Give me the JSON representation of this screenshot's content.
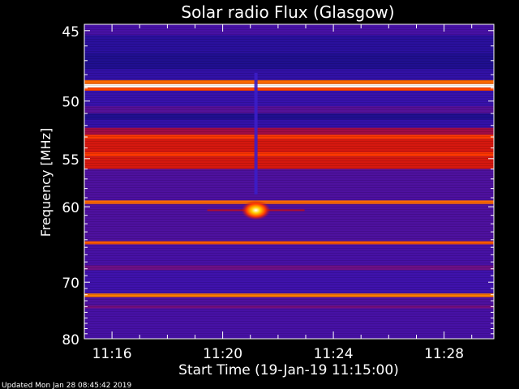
{
  "chart_data": {
    "type": "heatmap",
    "title": "Solar radio Flux (Glasgow)",
    "xlabel": "Start Time (19-Jan-19 11:15:00)",
    "ylabel": "Frequency [MHz]",
    "x_ticks": [
      "11:16",
      "11:20",
      "11:24",
      "11:28"
    ],
    "x_tick_minutes": [
      1,
      5,
      9,
      13
    ],
    "x_range_minutes": [
      0,
      14.8
    ],
    "y_ticks": [
      45,
      50,
      55,
      60,
      70,
      80
    ],
    "y_range": [
      44.6,
      80
    ],
    "y_scale": "reciprocal",
    "colormap": [
      "#1c0f8c",
      "#3a12b0",
      "#7a0f7a",
      "#c40a16",
      "#ff3a00",
      "#ffd000",
      "#ffffff"
    ],
    "background_color": "#2a14a8",
    "bands": [
      {
        "freq_lo": 44.6,
        "freq_hi": 45.3,
        "level": 0.2
      },
      {
        "freq_lo": 45.3,
        "freq_hi": 46.5,
        "level": 0.08
      },
      {
        "freq_lo": 46.5,
        "freq_hi": 47.6,
        "level": 0.02
      },
      {
        "freq_lo": 47.6,
        "freq_hi": 48.4,
        "level": 0.12
      },
      {
        "freq_lo": 48.4,
        "freq_hi": 48.7,
        "level": 0.72
      },
      {
        "freq_lo": 48.7,
        "freq_hi": 48.95,
        "level": 1.0
      },
      {
        "freq_lo": 48.95,
        "freq_hi": 49.2,
        "level": 0.68
      },
      {
        "freq_lo": 49.2,
        "freq_hi": 50.4,
        "level": 0.15
      },
      {
        "freq_lo": 50.4,
        "freq_hi": 51.0,
        "level": 0.24
      },
      {
        "freq_lo": 51.0,
        "freq_hi": 51.5,
        "level": 0.02
      },
      {
        "freq_lo": 51.5,
        "freq_hi": 52.2,
        "level": 0.13
      },
      {
        "freq_lo": 52.2,
        "freq_hi": 52.8,
        "level": 0.42
      },
      {
        "freq_lo": 52.8,
        "freq_hi": 53.2,
        "level": 0.66
      },
      {
        "freq_lo": 53.2,
        "freq_hi": 54.4,
        "level": 0.55
      },
      {
        "freq_lo": 54.4,
        "freq_hi": 54.8,
        "level": 0.66
      },
      {
        "freq_lo": 54.8,
        "freq_hi": 56.0,
        "level": 0.55
      },
      {
        "freq_lo": 56.0,
        "freq_hi": 59.3,
        "level": 0.22
      },
      {
        "freq_lo": 59.3,
        "freq_hi": 59.7,
        "level": 0.72
      },
      {
        "freq_lo": 59.7,
        "freq_hi": 64.2,
        "level": 0.22
      },
      {
        "freq_lo": 64.2,
        "freq_hi": 64.6,
        "level": 0.7
      },
      {
        "freq_lo": 64.6,
        "freq_hi": 67.5,
        "level": 0.2
      },
      {
        "freq_lo": 67.5,
        "freq_hi": 68.2,
        "level": 0.3
      },
      {
        "freq_lo": 68.2,
        "freq_hi": 71.8,
        "level": 0.18
      },
      {
        "freq_lo": 71.8,
        "freq_hi": 72.4,
        "level": 0.74
      },
      {
        "freq_lo": 72.4,
        "freq_hi": 73.8,
        "level": 0.22
      },
      {
        "freq_lo": 73.8,
        "freq_hi": 74.3,
        "level": 0.32
      },
      {
        "freq_lo": 74.3,
        "freq_hi": 80.0,
        "level": 0.2
      }
    ],
    "burst": {
      "time_minutes": 6.2,
      "freq_mhz": 60.4,
      "peak_level": 1.0
    }
  },
  "footer": {
    "updated": "Updated Mon Jan 28 08:45:42 2019"
  }
}
